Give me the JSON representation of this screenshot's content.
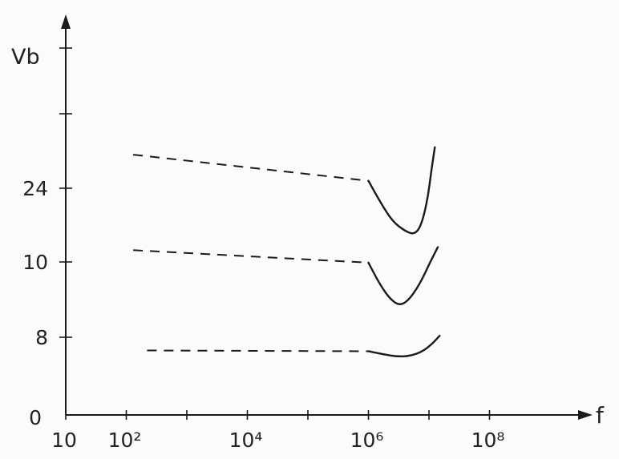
{
  "chart_data": {
    "type": "line",
    "title": "",
    "xlabel": "f",
    "ylabel": "Vb",
    "x_scale": "log",
    "xlim": [
      10,
      1000000000
    ],
    "x_ticks": [
      {
        "value": 10,
        "label": "10"
      },
      {
        "value": 100,
        "label": "10²"
      },
      {
        "value": 10000,
        "label": "10⁴"
      },
      {
        "value": 1000000,
        "label": "10⁶"
      },
      {
        "value": 100000000,
        "label": "10⁸"
      }
    ],
    "y_ticks": [
      {
        "position": 0,
        "label": "0"
      },
      {
        "position": 1,
        "label": "8"
      },
      {
        "position": 2,
        "label": "10"
      },
      {
        "position": 3,
        "label": "24"
      }
    ],
    "y_scale": "unlabelled-nonlinear",
    "y_range_positions": [
      0,
      5
    ],
    "grid": false,
    "legend": "none",
    "line_color": "#1a1a1a",
    "series": [
      {
        "name": "",
        "dashed_segment": [
          [
            130,
            3.45
          ],
          [
            1000000,
            3.1
          ]
        ],
        "solid_segment": [
          [
            1000000,
            3.1
          ],
          [
            1600000,
            2.8
          ],
          [
            2500000,
            2.55
          ],
          [
            4000000,
            2.42
          ],
          [
            5800000,
            2.37
          ],
          [
            7500000,
            2.5
          ],
          [
            9500000,
            2.85
          ],
          [
            11000000,
            3.25
          ],
          [
            12500000,
            3.55
          ]
        ]
      },
      {
        "name": "",
        "dashed_segment": [
          [
            130,
            2.16
          ],
          [
            1000000,
            1.99
          ]
        ],
        "solid_segment": [
          [
            1000000,
            1.99
          ],
          [
            1500000,
            1.72
          ],
          [
            2200000,
            1.52
          ],
          [
            3200000,
            1.42
          ],
          [
            4500000,
            1.48
          ],
          [
            7000000,
            1.7
          ],
          [
            10500000,
            2.0
          ],
          [
            14000000,
            2.2
          ]
        ]
      },
      {
        "name": "",
        "dashed_segment": [
          [
            220,
            0.83
          ],
          [
            1000000,
            0.82
          ]
        ],
        "solid_segment": [
          [
            1000000,
            0.82
          ],
          [
            1800000,
            0.78
          ],
          [
            3000000,
            0.75
          ],
          [
            5000000,
            0.76
          ],
          [
            8000000,
            0.82
          ],
          [
            11500000,
            0.92
          ],
          [
            15000000,
            1.02
          ]
        ]
      }
    ]
  }
}
